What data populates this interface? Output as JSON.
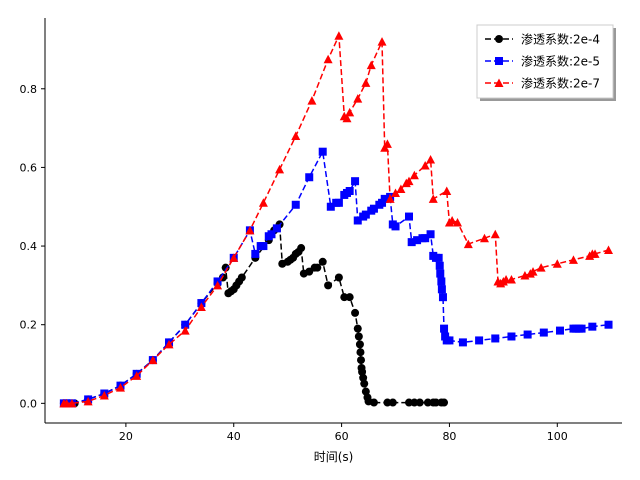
{
  "chart_data": {
    "type": "line",
    "title": "",
    "xlabel": "时间(s)",
    "ylabel": "",
    "xlim": [
      5,
      112
    ],
    "ylim": [
      -0.05,
      0.98
    ],
    "xticks": [
      20,
      40,
      60,
      80,
      100
    ],
    "yticks": [
      0.0,
      0.2,
      0.4,
      0.6,
      0.8
    ],
    "grid": false,
    "legend_position": "top-right",
    "series": [
      {
        "name": "渗透系数:2e-4",
        "color": "#000000",
        "marker": "circle",
        "linestyle": "dashed",
        "points": [
          [
            8.5,
            0.0
          ],
          [
            9.0,
            0.0
          ],
          [
            9.5,
            0.0
          ],
          [
            10.0,
            0.0
          ],
          [
            10.5,
            0.0
          ],
          [
            13.0,
            0.01
          ],
          [
            16.0,
            0.025
          ],
          [
            19.0,
            0.045
          ],
          [
            22.0,
            0.075
          ],
          [
            25.0,
            0.11
          ],
          [
            28.0,
            0.155
          ],
          [
            31.0,
            0.2
          ],
          [
            34.0,
            0.255
          ],
          [
            37.0,
            0.305
          ],
          [
            38.0,
            0.32
          ],
          [
            38.5,
            0.345
          ],
          [
            39.0,
            0.28
          ],
          [
            39.5,
            0.285
          ],
          [
            40.0,
            0.29
          ],
          [
            40.5,
            0.3
          ],
          [
            41.0,
            0.31
          ],
          [
            41.5,
            0.32
          ],
          [
            44.0,
            0.37
          ],
          [
            46.5,
            0.415
          ],
          [
            47.5,
            0.44
          ],
          [
            48.5,
            0.455
          ],
          [
            49.0,
            0.355
          ],
          [
            50.0,
            0.36
          ],
          [
            50.5,
            0.365
          ],
          [
            51.0,
            0.37
          ],
          [
            51.5,
            0.38
          ],
          [
            52.0,
            0.385
          ],
          [
            52.5,
            0.395
          ],
          [
            53.0,
            0.33
          ],
          [
            54.0,
            0.335
          ],
          [
            55.0,
            0.345
          ],
          [
            55.5,
            0.345
          ],
          [
            56.5,
            0.36
          ],
          [
            57.5,
            0.3
          ],
          [
            59.5,
            0.32
          ],
          [
            60.5,
            0.27
          ],
          [
            61.5,
            0.27
          ],
          [
            62.5,
            0.23
          ],
          [
            63.0,
            0.19
          ],
          [
            63.2,
            0.17
          ],
          [
            63.4,
            0.15
          ],
          [
            63.5,
            0.13
          ],
          [
            63.6,
            0.11
          ],
          [
            63.7,
            0.09
          ],
          [
            63.8,
            0.08
          ],
          [
            64.0,
            0.065
          ],
          [
            64.2,
            0.05
          ],
          [
            64.5,
            0.03
          ],
          [
            64.8,
            0.015
          ],
          [
            65.0,
            0.005
          ],
          [
            66.0,
            0.002
          ],
          [
            68.5,
            0.002
          ],
          [
            69.5,
            0.002
          ],
          [
            72.5,
            0.002
          ],
          [
            73.5,
            0.002
          ],
          [
            74.5,
            0.002
          ],
          [
            76.0,
            0.002
          ],
          [
            77.0,
            0.002
          ],
          [
            77.5,
            0.002
          ],
          [
            78.5,
            0.002
          ],
          [
            79.0,
            0.002
          ]
        ]
      },
      {
        "name": "渗透系数:2e-5",
        "color": "#0000ff",
        "marker": "square",
        "linestyle": "dashed",
        "points": [
          [
            8.5,
            0.0
          ],
          [
            9.0,
            0.0
          ],
          [
            10.0,
            0.0
          ],
          [
            13.0,
            0.01
          ],
          [
            16.0,
            0.025
          ],
          [
            19.0,
            0.045
          ],
          [
            22.0,
            0.075
          ],
          [
            25.0,
            0.11
          ],
          [
            28.0,
            0.155
          ],
          [
            31.0,
            0.2
          ],
          [
            34.0,
            0.255
          ],
          [
            37.0,
            0.31
          ],
          [
            40.0,
            0.37
          ],
          [
            43.0,
            0.44
          ],
          [
            44.0,
            0.38
          ],
          [
            45.0,
            0.4
          ],
          [
            45.5,
            0.4
          ],
          [
            46.5,
            0.425
          ],
          [
            47.0,
            0.43
          ],
          [
            48.0,
            0.445
          ],
          [
            51.5,
            0.505
          ],
          [
            54.0,
            0.575
          ],
          [
            56.5,
            0.64
          ],
          [
            58.0,
            0.5
          ],
          [
            59.0,
            0.51
          ],
          [
            59.5,
            0.51
          ],
          [
            60.5,
            0.53
          ],
          [
            61.0,
            0.535
          ],
          [
            61.5,
            0.54
          ],
          [
            62.5,
            0.565
          ],
          [
            63.0,
            0.465
          ],
          [
            64.0,
            0.475
          ],
          [
            64.5,
            0.48
          ],
          [
            65.5,
            0.49
          ],
          [
            66.0,
            0.495
          ],
          [
            67.0,
            0.505
          ],
          [
            67.5,
            0.51
          ],
          [
            68.0,
            0.52
          ],
          [
            69.0,
            0.525
          ],
          [
            69.5,
            0.455
          ],
          [
            70.0,
            0.45
          ],
          [
            72.5,
            0.475
          ],
          [
            73.0,
            0.41
          ],
          [
            74.0,
            0.415
          ],
          [
            75.0,
            0.42
          ],
          [
            75.5,
            0.42
          ],
          [
            76.5,
            0.43
          ],
          [
            77.0,
            0.375
          ],
          [
            77.5,
            0.37
          ],
          [
            78.0,
            0.37
          ],
          [
            78.2,
            0.35
          ],
          [
            78.3,
            0.33
          ],
          [
            78.5,
            0.31
          ],
          [
            78.6,
            0.29
          ],
          [
            78.8,
            0.27
          ],
          [
            79.0,
            0.19
          ],
          [
            79.2,
            0.17
          ],
          [
            79.5,
            0.16
          ],
          [
            80.0,
            0.16
          ],
          [
            82.5,
            0.155
          ],
          [
            85.5,
            0.16
          ],
          [
            88.5,
            0.165
          ],
          [
            91.5,
            0.17
          ],
          [
            94.5,
            0.175
          ],
          [
            97.5,
            0.18
          ],
          [
            100.5,
            0.185
          ],
          [
            103.0,
            0.19
          ],
          [
            103.5,
            0.19
          ],
          [
            104.0,
            0.19
          ],
          [
            104.5,
            0.19
          ],
          [
            106.5,
            0.195
          ],
          [
            109.5,
            0.2
          ]
        ]
      },
      {
        "name": "渗透系数:2e-7",
        "color": "#ff0000",
        "marker": "triangle",
        "linestyle": "dashed",
        "points": [
          [
            8.5,
            0.0
          ],
          [
            9.0,
            0.0
          ],
          [
            10.0,
            0.0
          ],
          [
            13.0,
            0.005
          ],
          [
            16.0,
            0.02
          ],
          [
            19.0,
            0.04
          ],
          [
            22.0,
            0.07
          ],
          [
            25.0,
            0.11
          ],
          [
            28.0,
            0.15
          ],
          [
            31.0,
            0.185
          ],
          [
            34.0,
            0.245
          ],
          [
            37.0,
            0.3
          ],
          [
            40.0,
            0.37
          ],
          [
            43.0,
            0.44
          ],
          [
            45.5,
            0.51
          ],
          [
            48.5,
            0.595
          ],
          [
            51.5,
            0.68
          ],
          [
            54.5,
            0.77
          ],
          [
            57.5,
            0.875
          ],
          [
            59.5,
            0.935
          ],
          [
            60.5,
            0.73
          ],
          [
            61.0,
            0.725
          ],
          [
            61.5,
            0.74
          ],
          [
            63.0,
            0.775
          ],
          [
            64.5,
            0.815
          ],
          [
            65.5,
            0.86
          ],
          [
            67.5,
            0.92
          ],
          [
            68.0,
            0.65
          ],
          [
            68.5,
            0.66
          ],
          [
            69.0,
            0.52
          ],
          [
            70.0,
            0.535
          ],
          [
            71.0,
            0.545
          ],
          [
            72.0,
            0.56
          ],
          [
            72.5,
            0.565
          ],
          [
            73.5,
            0.58
          ],
          [
            75.5,
            0.605
          ],
          [
            76.5,
            0.62
          ],
          [
            77.0,
            0.52
          ],
          [
            79.5,
            0.54
          ],
          [
            80.0,
            0.46
          ],
          [
            80.5,
            0.465
          ],
          [
            81.5,
            0.46
          ],
          [
            83.5,
            0.405
          ],
          [
            86.5,
            0.42
          ],
          [
            88.5,
            0.43
          ],
          [
            89.0,
            0.31
          ],
          [
            89.5,
            0.305
          ],
          [
            90.0,
            0.31
          ],
          [
            90.5,
            0.315
          ],
          [
            91.5,
            0.315
          ],
          [
            94.0,
            0.325
          ],
          [
            95.0,
            0.33
          ],
          [
            95.5,
            0.335
          ],
          [
            97.0,
            0.345
          ],
          [
            100.0,
            0.355
          ],
          [
            103.0,
            0.365
          ],
          [
            106.0,
            0.375
          ],
          [
            106.5,
            0.38
          ],
          [
            107.0,
            0.38
          ],
          [
            109.5,
            0.39
          ]
        ]
      }
    ]
  }
}
